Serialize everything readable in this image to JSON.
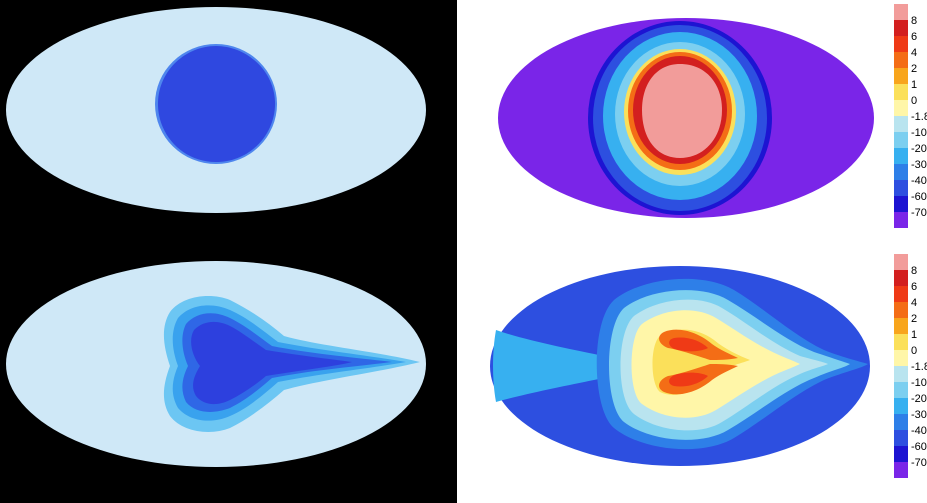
{
  "chart_data": [
    {
      "type": "heatmap",
      "panel": "top-left",
      "projection": "mollweide",
      "colors": {
        "background": "#cfe8f7",
        "region": "#2f48e0",
        "edge": "#4f86ee"
      }
    },
    {
      "type": "heatmap",
      "panel": "bottom-left",
      "projection": "mollweide",
      "colors": [
        "#cfe8f7",
        "#6cc6f3",
        "#39a2ee",
        "#2f67e6",
        "#2d40de"
      ]
    },
    {
      "type": "heatmap",
      "panel": "top-right",
      "projection": "mollweide",
      "colorbar": {
        "legend": "right",
        "labels": [
          "8",
          "6",
          "4",
          "2",
          "1",
          "0",
          "-1.8",
          "-10",
          "-20",
          "-30",
          "-40",
          "-60",
          "-70"
        ],
        "colors": [
          "#f29c9a",
          "#d31f1f",
          "#ef3a16",
          "#f46d16",
          "#f8a51c",
          "#fbe05a",
          "#fff6a8",
          "#b9e4ef",
          "#7ccff0",
          "#37b0f0",
          "#2e7fe8",
          "#2d4fe0",
          "#1d14d2",
          "#7a25e8"
        ]
      }
    },
    {
      "type": "heatmap",
      "panel": "bottom-right",
      "projection": "mollweide",
      "colorbar": {
        "legend": "right",
        "labels": [
          "8",
          "6",
          "4",
          "2",
          "1",
          "0",
          "-1.8",
          "-10",
          "-20",
          "-30",
          "-40",
          "-60",
          "-70"
        ],
        "colors": [
          "#f29c9a",
          "#d31f1f",
          "#ef3a16",
          "#f46d16",
          "#f8a51c",
          "#fbe05a",
          "#fff6a8",
          "#b9e4ef",
          "#7ccff0",
          "#37b0f0",
          "#2e7fe8",
          "#2d4fe0",
          "#1d14d2",
          "#7a25e8"
        ]
      }
    }
  ]
}
